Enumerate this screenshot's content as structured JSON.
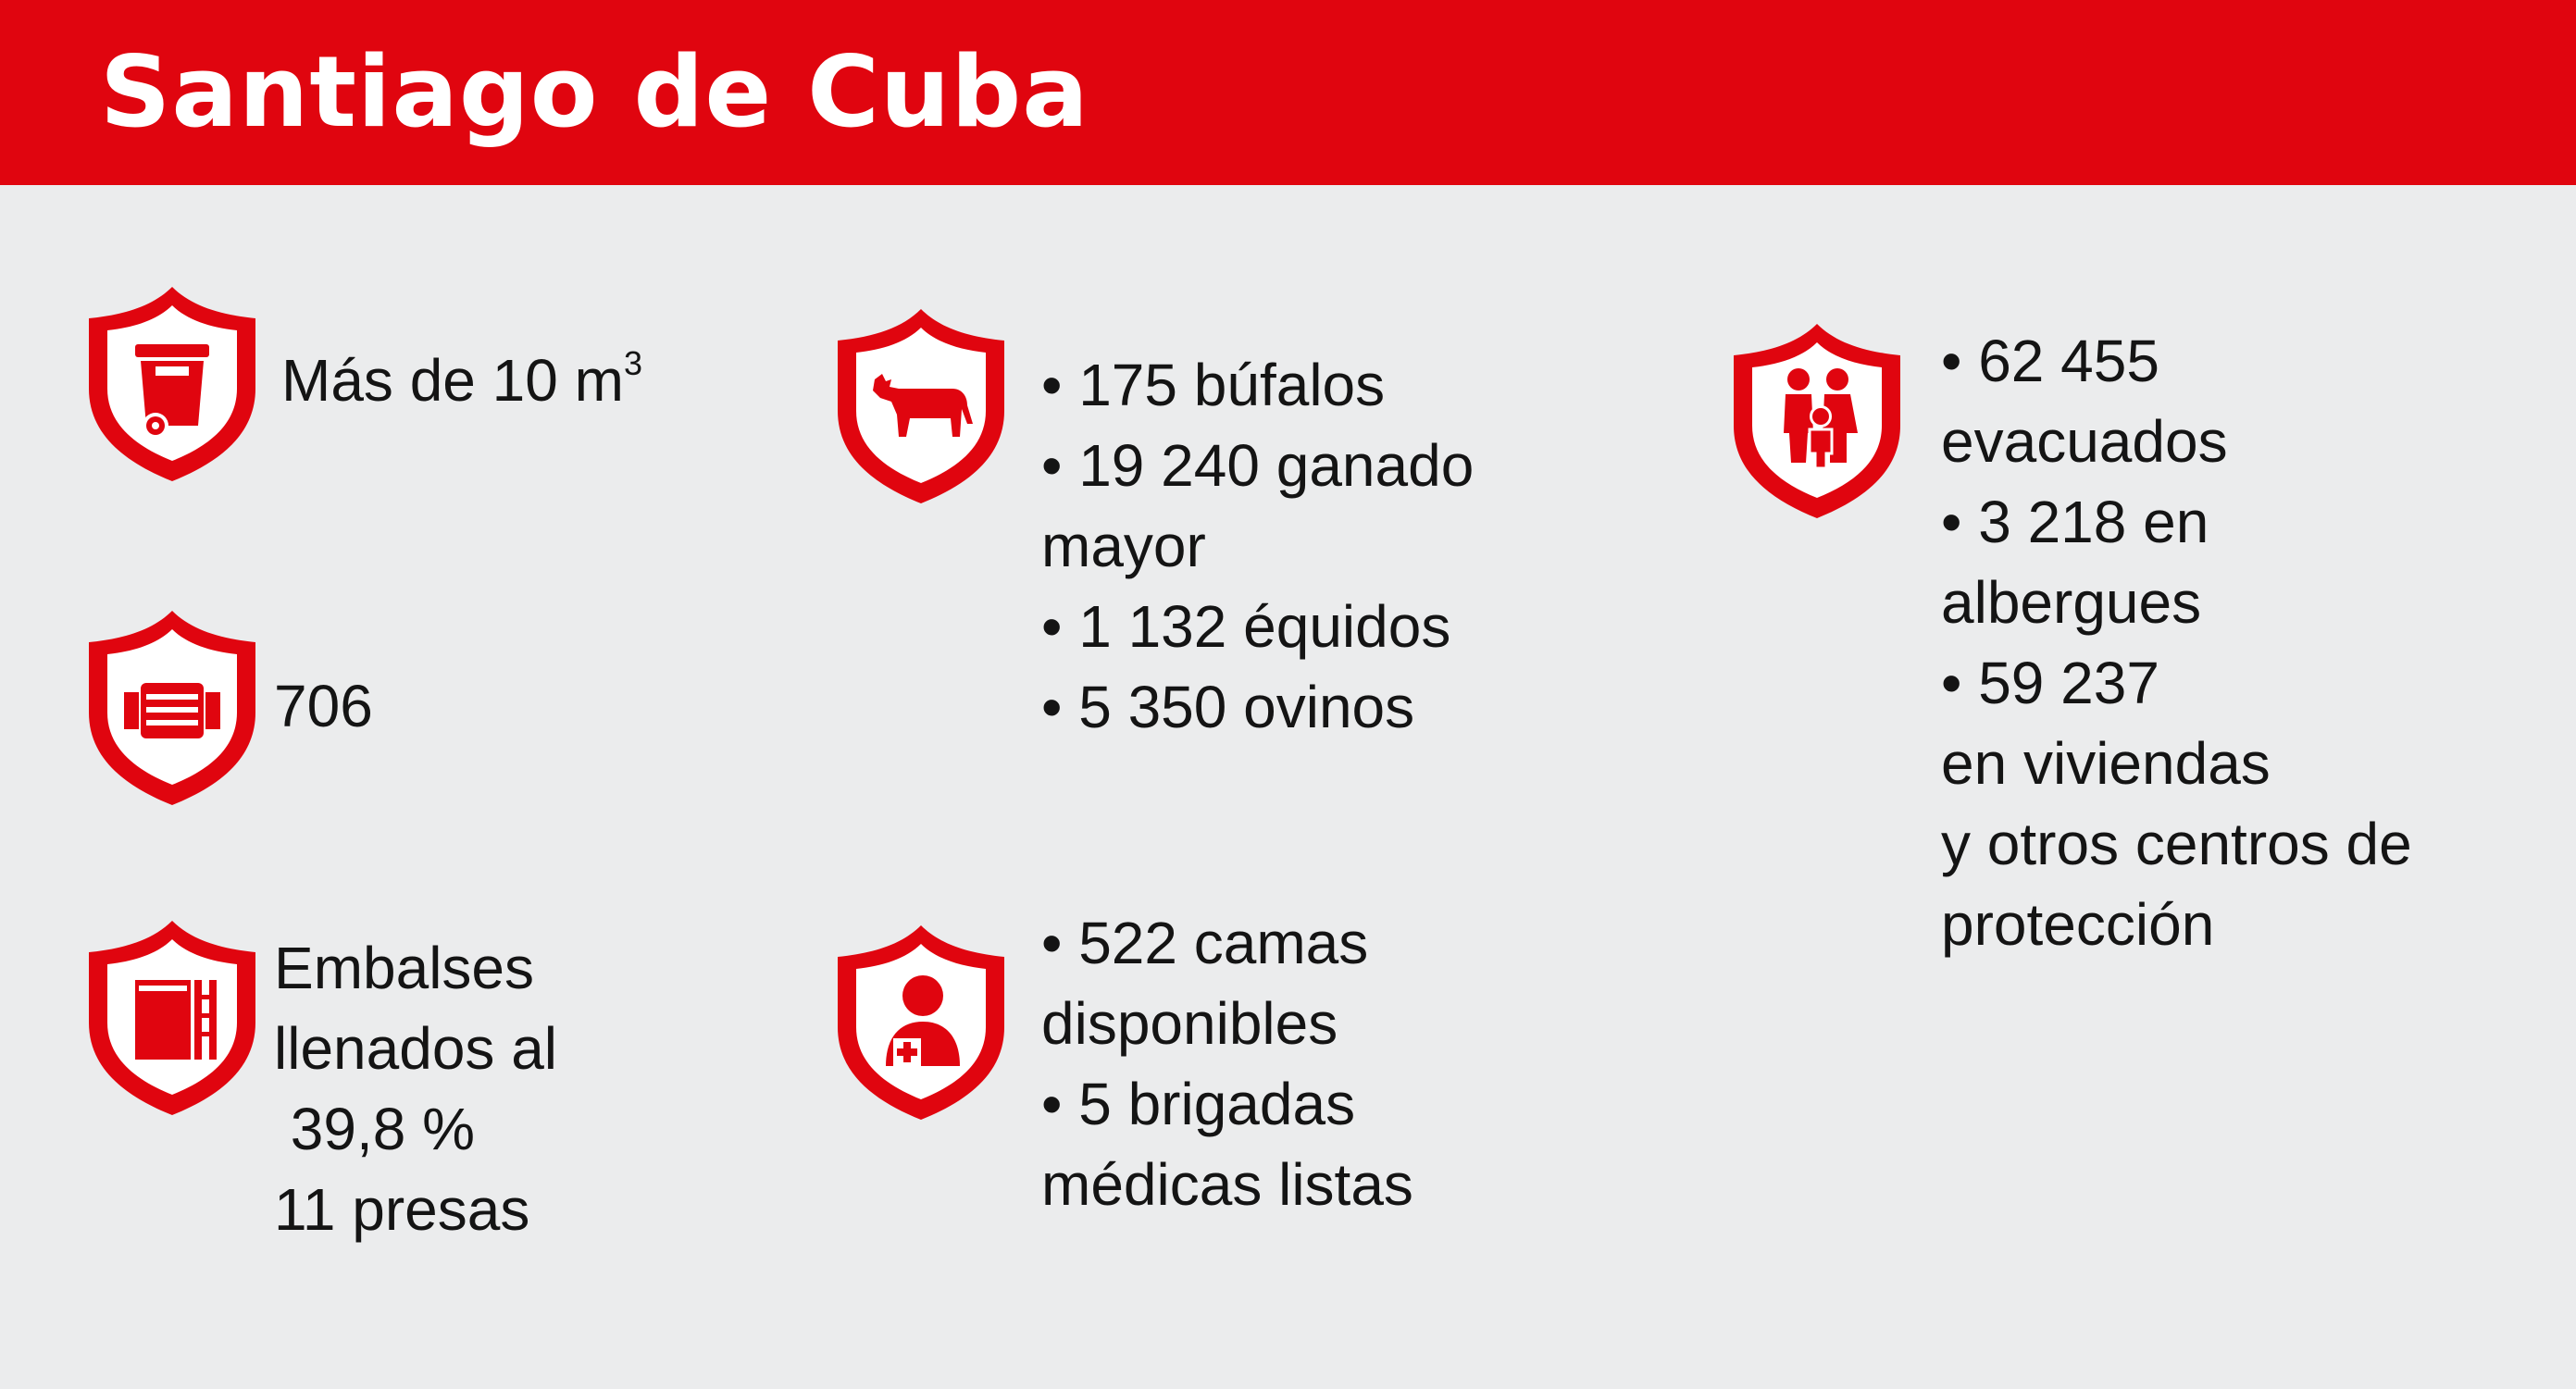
{
  "header": {
    "title": "Santiago de Cuba",
    "color": "#e0050f"
  },
  "items": [
    {
      "icon": "trash-bin-icon",
      "lines": [
        "Más de 10 m"
      ],
      "superscript": "3"
    },
    {
      "icon": "motor-pump-icon",
      "lines": [
        "706"
      ]
    },
    {
      "icon": "water-tank-icon",
      "lines": [
        "Embalses",
        "llenados al",
        " 39,8 %",
        "11 presas"
      ]
    },
    {
      "icon": "bull-icon",
      "lines": [
        "• 175 búfalos",
        "• 19 240 ganado",
        "mayor",
        "• 1 132 équidos",
        "• 5 350 ovinos"
      ]
    },
    {
      "icon": "doctor-icon",
      "lines": [
        "• 522 camas",
        "disponibles",
        "• 5 brigadas",
        "médicas listas"
      ]
    },
    {
      "icon": "family-icon",
      "lines": [
        "• 62 455",
        "evacuados",
        "• 3 218 en",
        "albergues",
        "• 59 237",
        "en viviendas",
        "y otros centros de",
        "protección"
      ]
    }
  ]
}
